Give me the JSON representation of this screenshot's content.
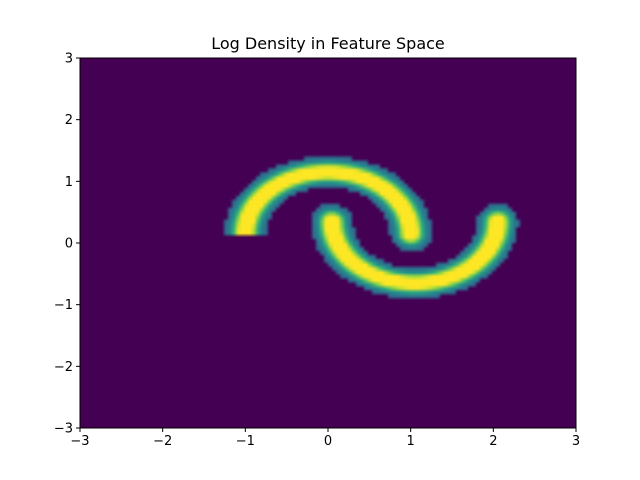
{
  "chart_data": {
    "type": "heatmap",
    "title": "Log Density in Feature Space",
    "xlabel": "",
    "ylabel": "",
    "xlim": [
      -3,
      3
    ],
    "ylim": [
      -3,
      3
    ],
    "x_ticks": [
      -3,
      -2,
      -1,
      0,
      1,
      2,
      3
    ],
    "y_ticks": [
      -3,
      -2,
      -1,
      0,
      1,
      2,
      3
    ],
    "x_tick_labels": [
      "−3",
      "−2",
      "−1",
      "0",
      "1",
      "2",
      "3"
    ],
    "y_tick_labels": [
      "−3",
      "−2",
      "−1",
      "0",
      "1",
      "2",
      "3"
    ],
    "grid": false,
    "colormap": "viridis",
    "colors": {
      "background": "#440154",
      "low": "#440154",
      "mid_low": "#31688e",
      "mid": "#21918c",
      "mid_high": "#5ec962",
      "high": "#fde725"
    },
    "density_shape": "two-moons",
    "moons": [
      {
        "name": "upper",
        "center": [
          0,
          0
        ],
        "radius": 1.0,
        "arc_degrees": [
          0,
          180
        ],
        "peak_points": [
          [
            -0.9,
            0.25
          ],
          [
            0.0,
            1.0
          ]
        ]
      },
      {
        "name": "lower",
        "center": [
          1,
          0.5
        ],
        "radius": 1.0,
        "arc_degrees": [
          180,
          360
        ],
        "peak_points": [
          [
            0.8,
            -0.4
          ],
          [
            2.0,
            0.3
          ]
        ]
      }
    ]
  }
}
